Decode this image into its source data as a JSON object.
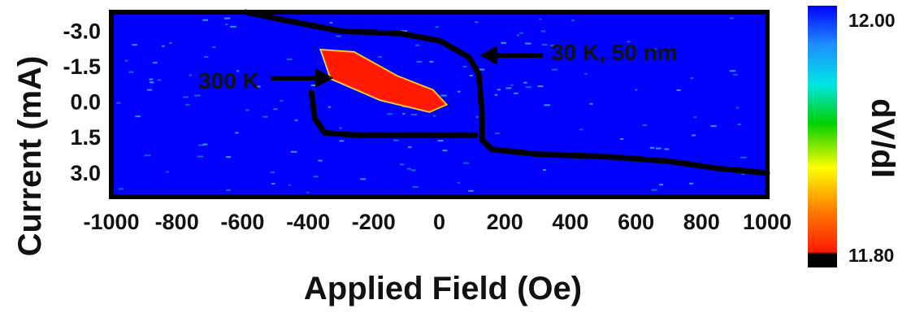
{
  "chart_data": {
    "type": "heatmap",
    "xlabel": "Applied Field (Oe)",
    "ylabel": "Current (mA)",
    "xlim": [
      -1000,
      1000
    ],
    "ylim": [
      -3.8,
      4.0
    ],
    "x_ticks": [
      "-1000",
      "-800",
      "-600",
      "-400",
      "-200",
      "0",
      "200",
      "400",
      "600",
      "800",
      "1000"
    ],
    "y_ticks": [
      "-3.0",
      "-1.5",
      "0.0",
      "1.5",
      "3.0"
    ],
    "colorbar": {
      "label": "dV/dI",
      "max_label": "12.00",
      "min_label": "11.80",
      "max": 12.0,
      "min": 11.8,
      "colors": [
        "#000000",
        "#ff1a00",
        "#ff7f00",
        "#ffff00",
        "#00d000",
        "#00e5e5",
        "#1e8fff",
        "#0000ff"
      ]
    },
    "background_value": 11.99,
    "annotations": [
      {
        "text": "300 K",
        "x": -330,
        "y": -1.2
      },
      {
        "text": "30 K, 50 nm",
        "x": 120,
        "y": -2.0
      }
    ],
    "low_region": {
      "value": 11.81,
      "polygon": [
        [
          -360,
          -2.2
        ],
        [
          -260,
          -2.1
        ],
        [
          -130,
          -1.1
        ],
        [
          -20,
          -0.5
        ],
        [
          20,
          0.1
        ],
        [
          -30,
          0.4
        ],
        [
          -180,
          -0.1
        ],
        [
          -330,
          -1.0
        ]
      ]
    },
    "switching_curves": [
      {
        "name": "300 K",
        "points": [
          [
            -390,
            -0.4
          ],
          [
            -380,
            0.7
          ],
          [
            -350,
            1.3
          ],
          [
            -250,
            1.4
          ],
          [
            -100,
            1.4
          ],
          [
            50,
            1.4
          ],
          [
            110,
            1.4
          ]
        ]
      },
      {
        "name": "30 K, 50 nm",
        "points": [
          [
            -590,
            -3.8
          ],
          [
            -450,
            -3.4
          ],
          [
            -300,
            -3.0
          ],
          [
            -120,
            -2.9
          ],
          [
            0,
            -2.6
          ],
          [
            90,
            -1.9
          ],
          [
            120,
            -1.2
          ],
          [
            130,
            0.5
          ],
          [
            130,
            1.6
          ],
          [
            160,
            2.0
          ],
          [
            300,
            2.2
          ],
          [
            500,
            2.3
          ],
          [
            700,
            2.5
          ],
          [
            850,
            2.8
          ],
          [
            1000,
            3.0
          ]
        ]
      }
    ]
  }
}
